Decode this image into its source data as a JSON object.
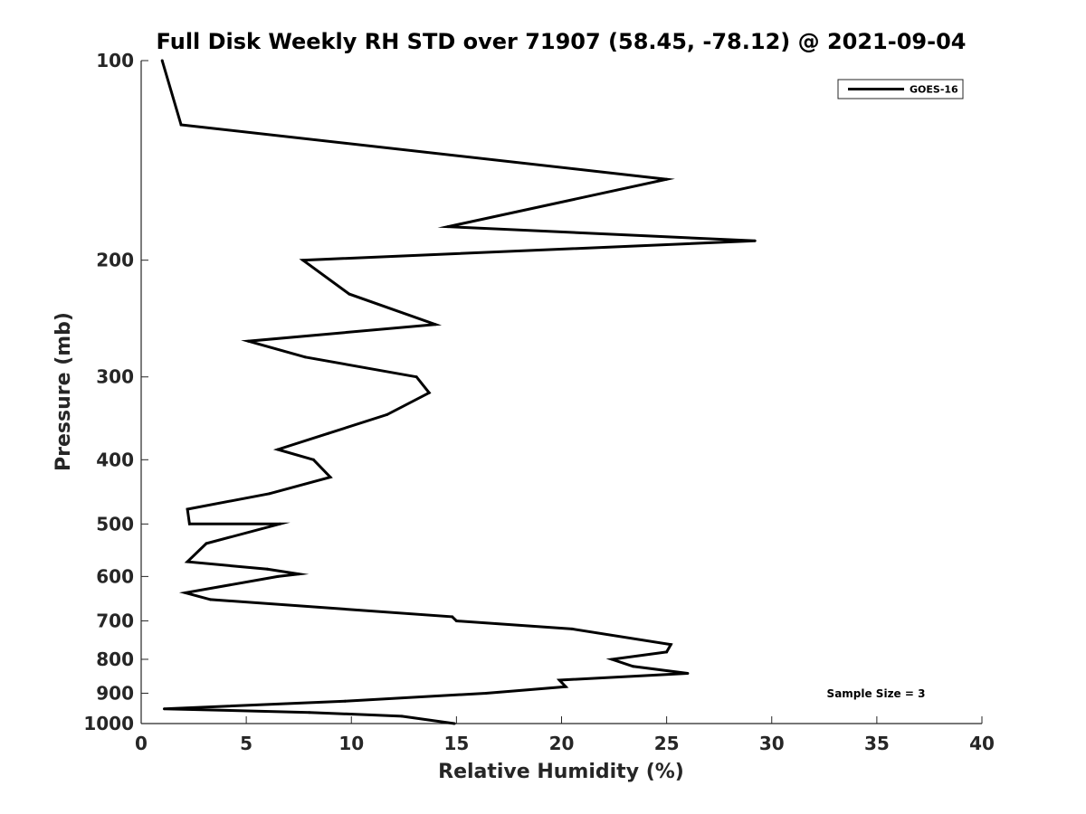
{
  "chart_data": {
    "type": "line",
    "title": "Full Disk Weekly RH STD over 71907 (58.45, -78.12) @ 2021-09-04",
    "xlabel": "Relative Humidity (%)",
    "ylabel": "Pressure (mb)",
    "xlim": [
      0,
      40
    ],
    "ylim": [
      100,
      1000
    ],
    "y_scale": "log",
    "y_reversed": true,
    "x_ticks": [
      "0",
      "5",
      "10",
      "15",
      "20",
      "25",
      "30",
      "35",
      "40"
    ],
    "y_ticks": [
      "100",
      "200",
      "300",
      "400",
      "500",
      "600",
      "700",
      "800",
      "900",
      "1000"
    ],
    "grid": false,
    "legend_position": "top-right",
    "annotation": "Sample Size = 3",
    "series": [
      {
        "name": "GOES-16",
        "color": "#000000",
        "points": [
          {
            "x": 1.0,
            "y": 100
          },
          {
            "x": 1.9,
            "y": 125
          },
          {
            "x": 25.0,
            "y": 151
          },
          {
            "x": 14.6,
            "y": 178
          },
          {
            "x": 29.2,
            "y": 187
          },
          {
            "x": 7.7,
            "y": 200
          },
          {
            "x": 9.9,
            "y": 225
          },
          {
            "x": 14.0,
            "y": 250
          },
          {
            "x": 5.1,
            "y": 265
          },
          {
            "x": 7.8,
            "y": 280
          },
          {
            "x": 13.1,
            "y": 300
          },
          {
            "x": 13.7,
            "y": 317
          },
          {
            "x": 11.7,
            "y": 342
          },
          {
            "x": 8.9,
            "y": 365
          },
          {
            "x": 6.5,
            "y": 386
          },
          {
            "x": 8.2,
            "y": 400
          },
          {
            "x": 9.0,
            "y": 425
          },
          {
            "x": 6.1,
            "y": 450
          },
          {
            "x": 2.2,
            "y": 475
          },
          {
            "x": 2.3,
            "y": 500
          },
          {
            "x": 6.6,
            "y": 500
          },
          {
            "x": 3.1,
            "y": 535
          },
          {
            "x": 2.2,
            "y": 570
          },
          {
            "x": 6.0,
            "y": 585
          },
          {
            "x": 7.5,
            "y": 595
          },
          {
            "x": 6.5,
            "y": 600
          },
          {
            "x": 2.1,
            "y": 635
          },
          {
            "x": 3.3,
            "y": 650
          },
          {
            "x": 14.8,
            "y": 690
          },
          {
            "x": 15.0,
            "y": 700
          },
          {
            "x": 20.5,
            "y": 720
          },
          {
            "x": 25.2,
            "y": 760
          },
          {
            "x": 25.0,
            "y": 780
          },
          {
            "x": 22.4,
            "y": 800
          },
          {
            "x": 23.4,
            "y": 820
          },
          {
            "x": 26.0,
            "y": 840
          },
          {
            "x": 19.9,
            "y": 860
          },
          {
            "x": 20.2,
            "y": 880
          },
          {
            "x": 16.4,
            "y": 900
          },
          {
            "x": 9.7,
            "y": 925
          },
          {
            "x": 1.1,
            "y": 950
          },
          {
            "x": 8.0,
            "y": 962
          },
          {
            "x": 12.4,
            "y": 975
          },
          {
            "x": 14.9,
            "y": 1000
          }
        ]
      }
    ]
  }
}
